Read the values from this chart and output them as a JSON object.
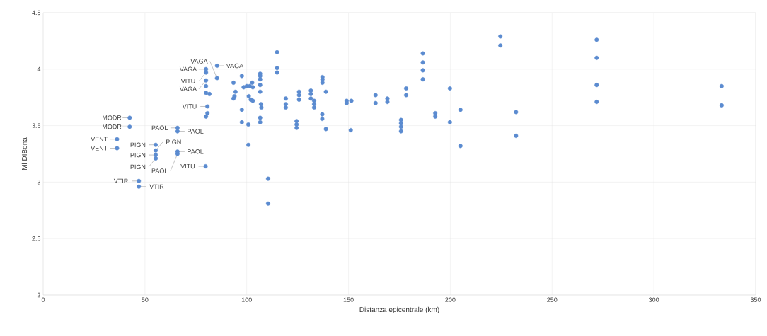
{
  "chart_data": {
    "type": "scatter",
    "xlabel": "Distanza epicentrale (km)",
    "ylabel": "Ml DIBona",
    "xlim": [
      0,
      350
    ],
    "ylim": [
      2,
      4.5
    ],
    "xticks": [
      0,
      50,
      100,
      150,
      200,
      250,
      300,
      350
    ],
    "yticks": [
      2,
      2.5,
      3,
      3.5,
      4,
      4.5
    ],
    "grid": true,
    "series": [
      {
        "color": "#5b8bd0",
        "x": [
          36.3,
          36.3,
          42.5,
          42.5,
          47,
          47,
          55.3,
          55.3,
          55.3,
          55.3,
          66,
          66,
          66,
          66,
          79.8,
          80,
          80,
          80,
          80,
          80,
          81.7,
          80.7,
          80.7,
          80,
          85.4,
          85.4,
          93.5,
          94.5,
          94,
          93.5,
          97.6,
          97.6,
          97.6,
          98.5,
          100,
          101.5,
          102.7,
          103,
          101,
          102,
          103,
          100.8,
          100.8,
          106.6,
          106.6,
          106.6,
          106.6,
          106.6,
          107,
          107.2,
          106.6,
          106.6,
          114.9,
          114.9,
          114.9,
          110.5,
          110.5,
          119.2,
          119.2,
          119.2,
          125.7,
          125.7,
          125.7,
          124.5,
          124.5,
          124.5,
          131.5,
          131.5,
          131.5,
          133.1,
          133.1,
          133.1,
          137.2,
          137.2,
          137.2,
          138.9,
          137.1,
          137.1,
          138.9,
          149.1,
          151.4,
          149.1,
          151.1,
          163.3,
          163.3,
          169.1,
          169.1,
          175.8,
          175.8,
          175.8,
          175.8,
          178.3,
          178.3,
          186.5,
          186.5,
          186.5,
          186.5,
          192.6,
          192.6,
          199.8,
          199.8,
          205,
          205,
          224.6,
          224.6,
          232.3,
          232.3,
          271.9,
          271.9,
          271.9,
          271.9,
          333.3,
          333.3
        ],
        "values": [
          3.38,
          3.3,
          3.57,
          3.49,
          3.01,
          2.96,
          3.33,
          3.28,
          3.24,
          3.21,
          3.48,
          3.45,
          3.27,
          3.25,
          3.14,
          4.0,
          3.97,
          3.9,
          3.85,
          3.79,
          3.78,
          3.67,
          3.61,
          3.58,
          4.03,
          3.92,
          3.88,
          3.8,
          3.76,
          3.74,
          3.94,
          3.64,
          3.53,
          3.84,
          3.85,
          3.85,
          3.88,
          3.84,
          3.76,
          3.73,
          3.72,
          3.51,
          3.33,
          3.96,
          3.94,
          3.91,
          3.86,
          3.8,
          3.69,
          3.66,
          3.57,
          3.53,
          4.15,
          4.01,
          3.97,
          3.03,
          2.81,
          3.74,
          3.69,
          3.66,
          3.8,
          3.77,
          3.73,
          3.54,
          3.51,
          3.48,
          3.81,
          3.78,
          3.74,
          3.72,
          3.69,
          3.66,
          3.93,
          3.91,
          3.88,
          3.8,
          3.6,
          3.56,
          3.47,
          3.72,
          3.72,
          3.7,
          3.46,
          3.77,
          3.7,
          3.74,
          3.71,
          3.55,
          3.52,
          3.49,
          3.45,
          3.83,
          3.77,
          4.14,
          4.06,
          3.99,
          3.91,
          3.61,
          3.58,
          3.83,
          3.53,
          3.64,
          3.32,
          4.29,
          4.21,
          3.62,
          3.41,
          4.26,
          4.1,
          3.86,
          3.71,
          3.85,
          3.68
        ]
      }
    ],
    "annotations": [
      {
        "text": "MODR",
        "x": 42.5,
        "y": 3.57
      },
      {
        "text": "MODR",
        "x": 42.5,
        "y": 3.49
      },
      {
        "text": "VENT",
        "x": 36.3,
        "y": 3.38
      },
      {
        "text": "VENT",
        "x": 36.3,
        "y": 3.3
      },
      {
        "text": "VTIR",
        "x": 47,
        "y": 3.01
      },
      {
        "text": "VTIR",
        "x": 47,
        "y": 2.96
      },
      {
        "text": "PIGN",
        "x": 55.3,
        "y": 3.33
      },
      {
        "text": "PIGN",
        "x": 55.3,
        "y": 3.28
      },
      {
        "text": "PIGN",
        "x": 55.3,
        "y": 3.24
      },
      {
        "text": "PIGN",
        "x": 55.3,
        "y": 3.21
      },
      {
        "text": "PAOL",
        "x": 66,
        "y": 3.48
      },
      {
        "text": "PAOL",
        "x": 66,
        "y": 3.45
      },
      {
        "text": "PAOL",
        "x": 66,
        "y": 3.27
      },
      {
        "text": "PAOL",
        "x": 66,
        "y": 3.25
      },
      {
        "text": "VITU",
        "x": 79.8,
        "y": 3.14
      },
      {
        "text": "VAGA",
        "x": 85.4,
        "y": 4.03
      },
      {
        "text": "VAGA",
        "x": 80,
        "y": 4.0
      },
      {
        "text": "VITU",
        "x": 80,
        "y": 3.97
      },
      {
        "text": "VAGA",
        "x": 85.4,
        "y": 3.92
      },
      {
        "text": "VAGA",
        "x": 80,
        "y": 3.9
      },
      {
        "text": "VITU",
        "x": 80.7,
        "y": 3.67
      }
    ]
  }
}
